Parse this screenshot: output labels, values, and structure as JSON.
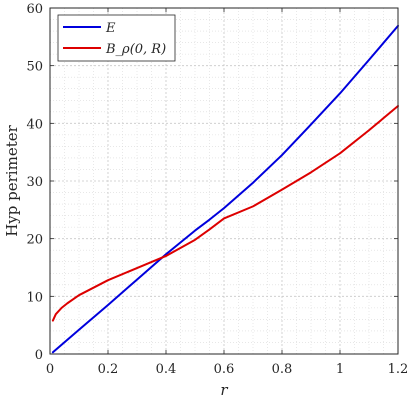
{
  "chart_data": {
    "type": "line",
    "xlabel": "r",
    "ylabel": "Hyp perimeter",
    "xlim": [
      0,
      1.2
    ],
    "ylim": [
      0,
      60
    ],
    "xticks": [
      "0",
      "0.2",
      "0.4",
      "0.6",
      "0.8",
      "1",
      "1.2"
    ],
    "yticks": [
      "0",
      "10",
      "20",
      "30",
      "40",
      "50",
      "60"
    ],
    "grid": true,
    "minor_grid": true,
    "legend_position": "top-left",
    "series": [
      {
        "name": "E",
        "color": "#0000dd",
        "x": [
          0.01,
          0.1,
          0.2,
          0.3,
          0.4,
          0.5,
          0.55,
          0.6,
          0.7,
          0.8,
          0.9,
          1.0,
          1.1,
          1.2
        ],
        "y": [
          0.3,
          4.2,
          8.5,
          12.9,
          17.3,
          21.4,
          23.3,
          25.3,
          29.7,
          34.5,
          39.8,
          45.2,
          51.0,
          56.9
        ]
      },
      {
        "name": "B_ρ(0, R)",
        "color": "#dd0000",
        "x": [
          0.01,
          0.02,
          0.04,
          0.06,
          0.1,
          0.2,
          0.3,
          0.4,
          0.5,
          0.55,
          0.6,
          0.7,
          0.8,
          0.9,
          1.0,
          1.1,
          1.2
        ],
        "y": [
          5.8,
          6.9,
          8.0,
          8.8,
          10.2,
          12.8,
          14.9,
          17.0,
          19.8,
          21.6,
          23.5,
          25.6,
          28.5,
          31.5,
          34.8,
          38.8,
          43.0
        ]
      }
    ]
  }
}
